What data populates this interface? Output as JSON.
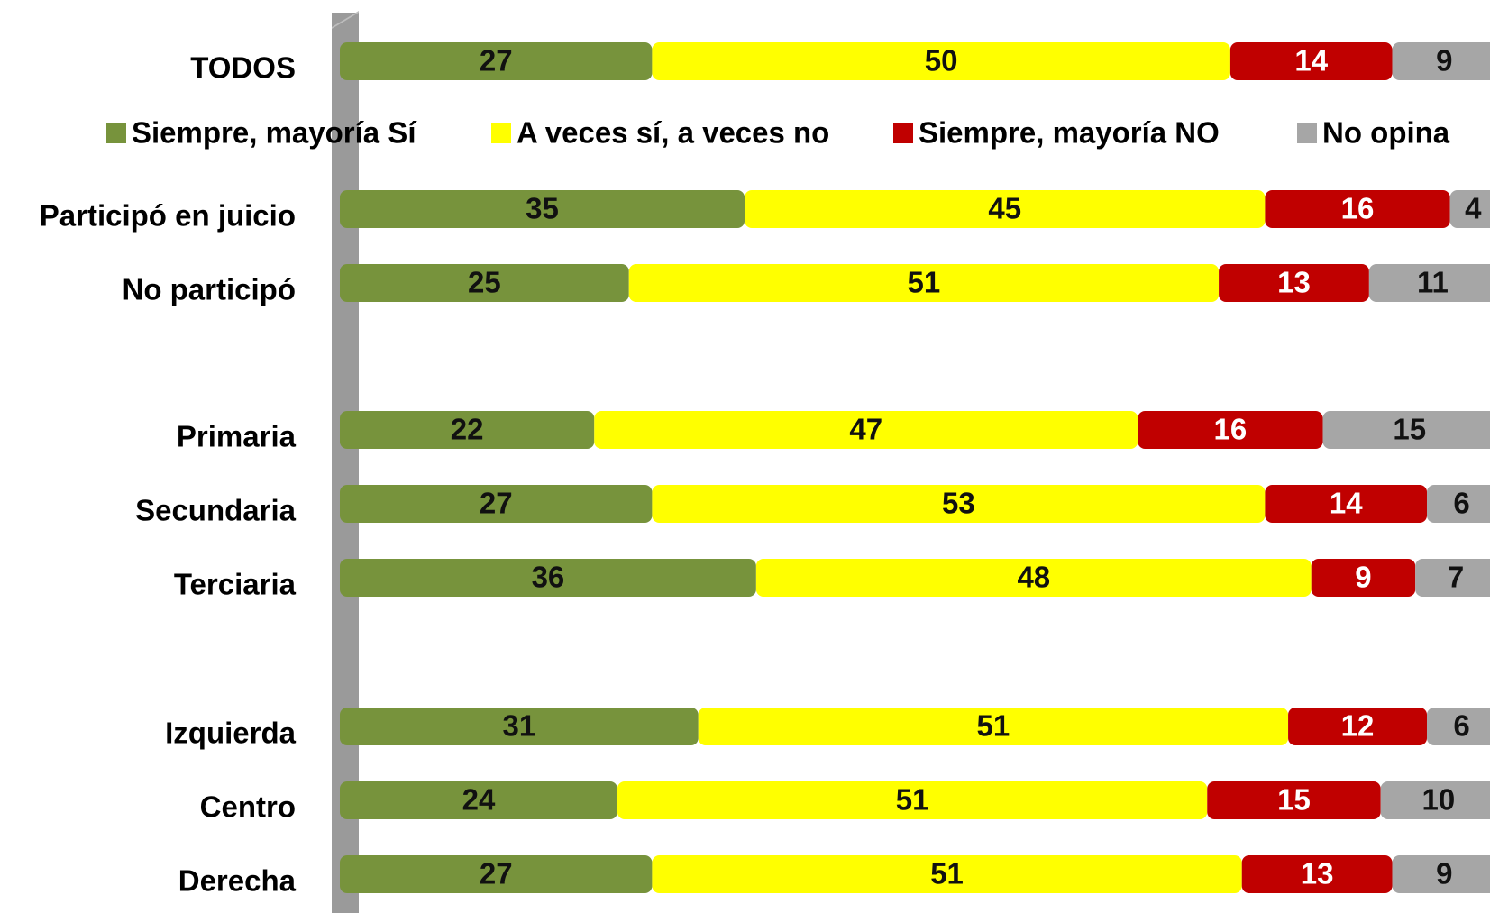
{
  "chart_data": {
    "type": "stacked-bar",
    "categories": [
      "TODOS",
      "Participó en juicio",
      "No participó",
      "Primaria",
      "Secundaria",
      "Terciaria",
      "Izquierda",
      "Centro",
      "Derecha"
    ],
    "series": [
      {
        "name": "Siempre, mayoría Sí",
        "color": "#77933c",
        "values": [
          27,
          35,
          25,
          22,
          27,
          36,
          31,
          24,
          27
        ]
      },
      {
        "name": "A veces sí, a veces no",
        "color": "#ffff00",
        "values": [
          50,
          45,
          51,
          47,
          53,
          48,
          51,
          51,
          51
        ]
      },
      {
        "name": "Siempre, mayoría NO",
        "color": "#c00000",
        "values": [
          14,
          16,
          13,
          16,
          14,
          9,
          12,
          15,
          13
        ]
      },
      {
        "name": "No opina",
        "color": "#a6a6a6",
        "values": [
          9,
          4,
          11,
          15,
          6,
          7,
          6,
          10,
          9
        ]
      }
    ]
  }
}
